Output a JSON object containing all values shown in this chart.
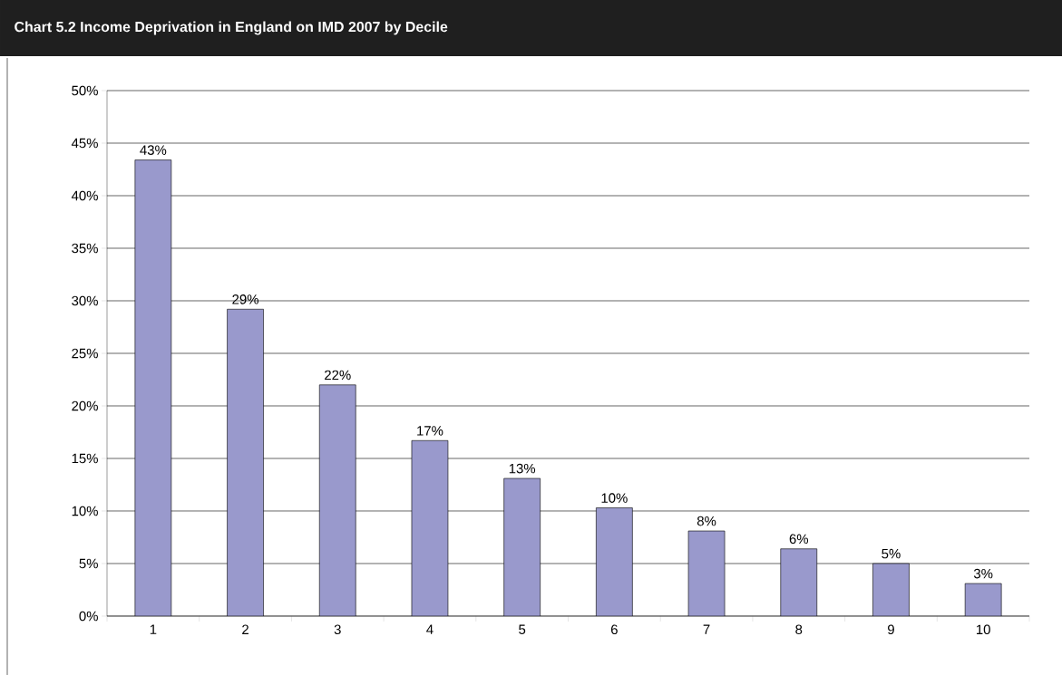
{
  "chart_data": {
    "type": "bar",
    "title": "Chart 5.2  Income Deprivation in England on IMD 2007 by Decile",
    "categories": [
      "1",
      "2",
      "3",
      "4",
      "5",
      "6",
      "7",
      "8",
      "9",
      "10"
    ],
    "values": [
      43.4,
      29.2,
      22.0,
      16.7,
      13.1,
      10.3,
      8.1,
      6.4,
      5.0,
      3.1
    ],
    "value_labels": [
      "43%",
      "29%",
      "22%",
      "17%",
      "13%",
      "10%",
      "8%",
      "6%",
      "5%",
      "3%"
    ],
    "color": "#9999cc",
    "ylim": [
      0,
      50
    ],
    "yticks": [
      {
        "value": 0,
        "label": "0%"
      },
      {
        "value": 5,
        "label": "5%"
      },
      {
        "value": 10,
        "label": "10%"
      },
      {
        "value": 15,
        "label": "15%"
      },
      {
        "value": 20,
        "label": "20%"
      },
      {
        "value": 25,
        "label": "25%"
      },
      {
        "value": 30,
        "label": "30%"
      },
      {
        "value": 35,
        "label": "35%"
      },
      {
        "value": 40,
        "label": "40%"
      },
      {
        "value": 45,
        "label": "45%"
      },
      {
        "value": 50,
        "label": "50%"
      }
    ],
    "grid": "y"
  }
}
